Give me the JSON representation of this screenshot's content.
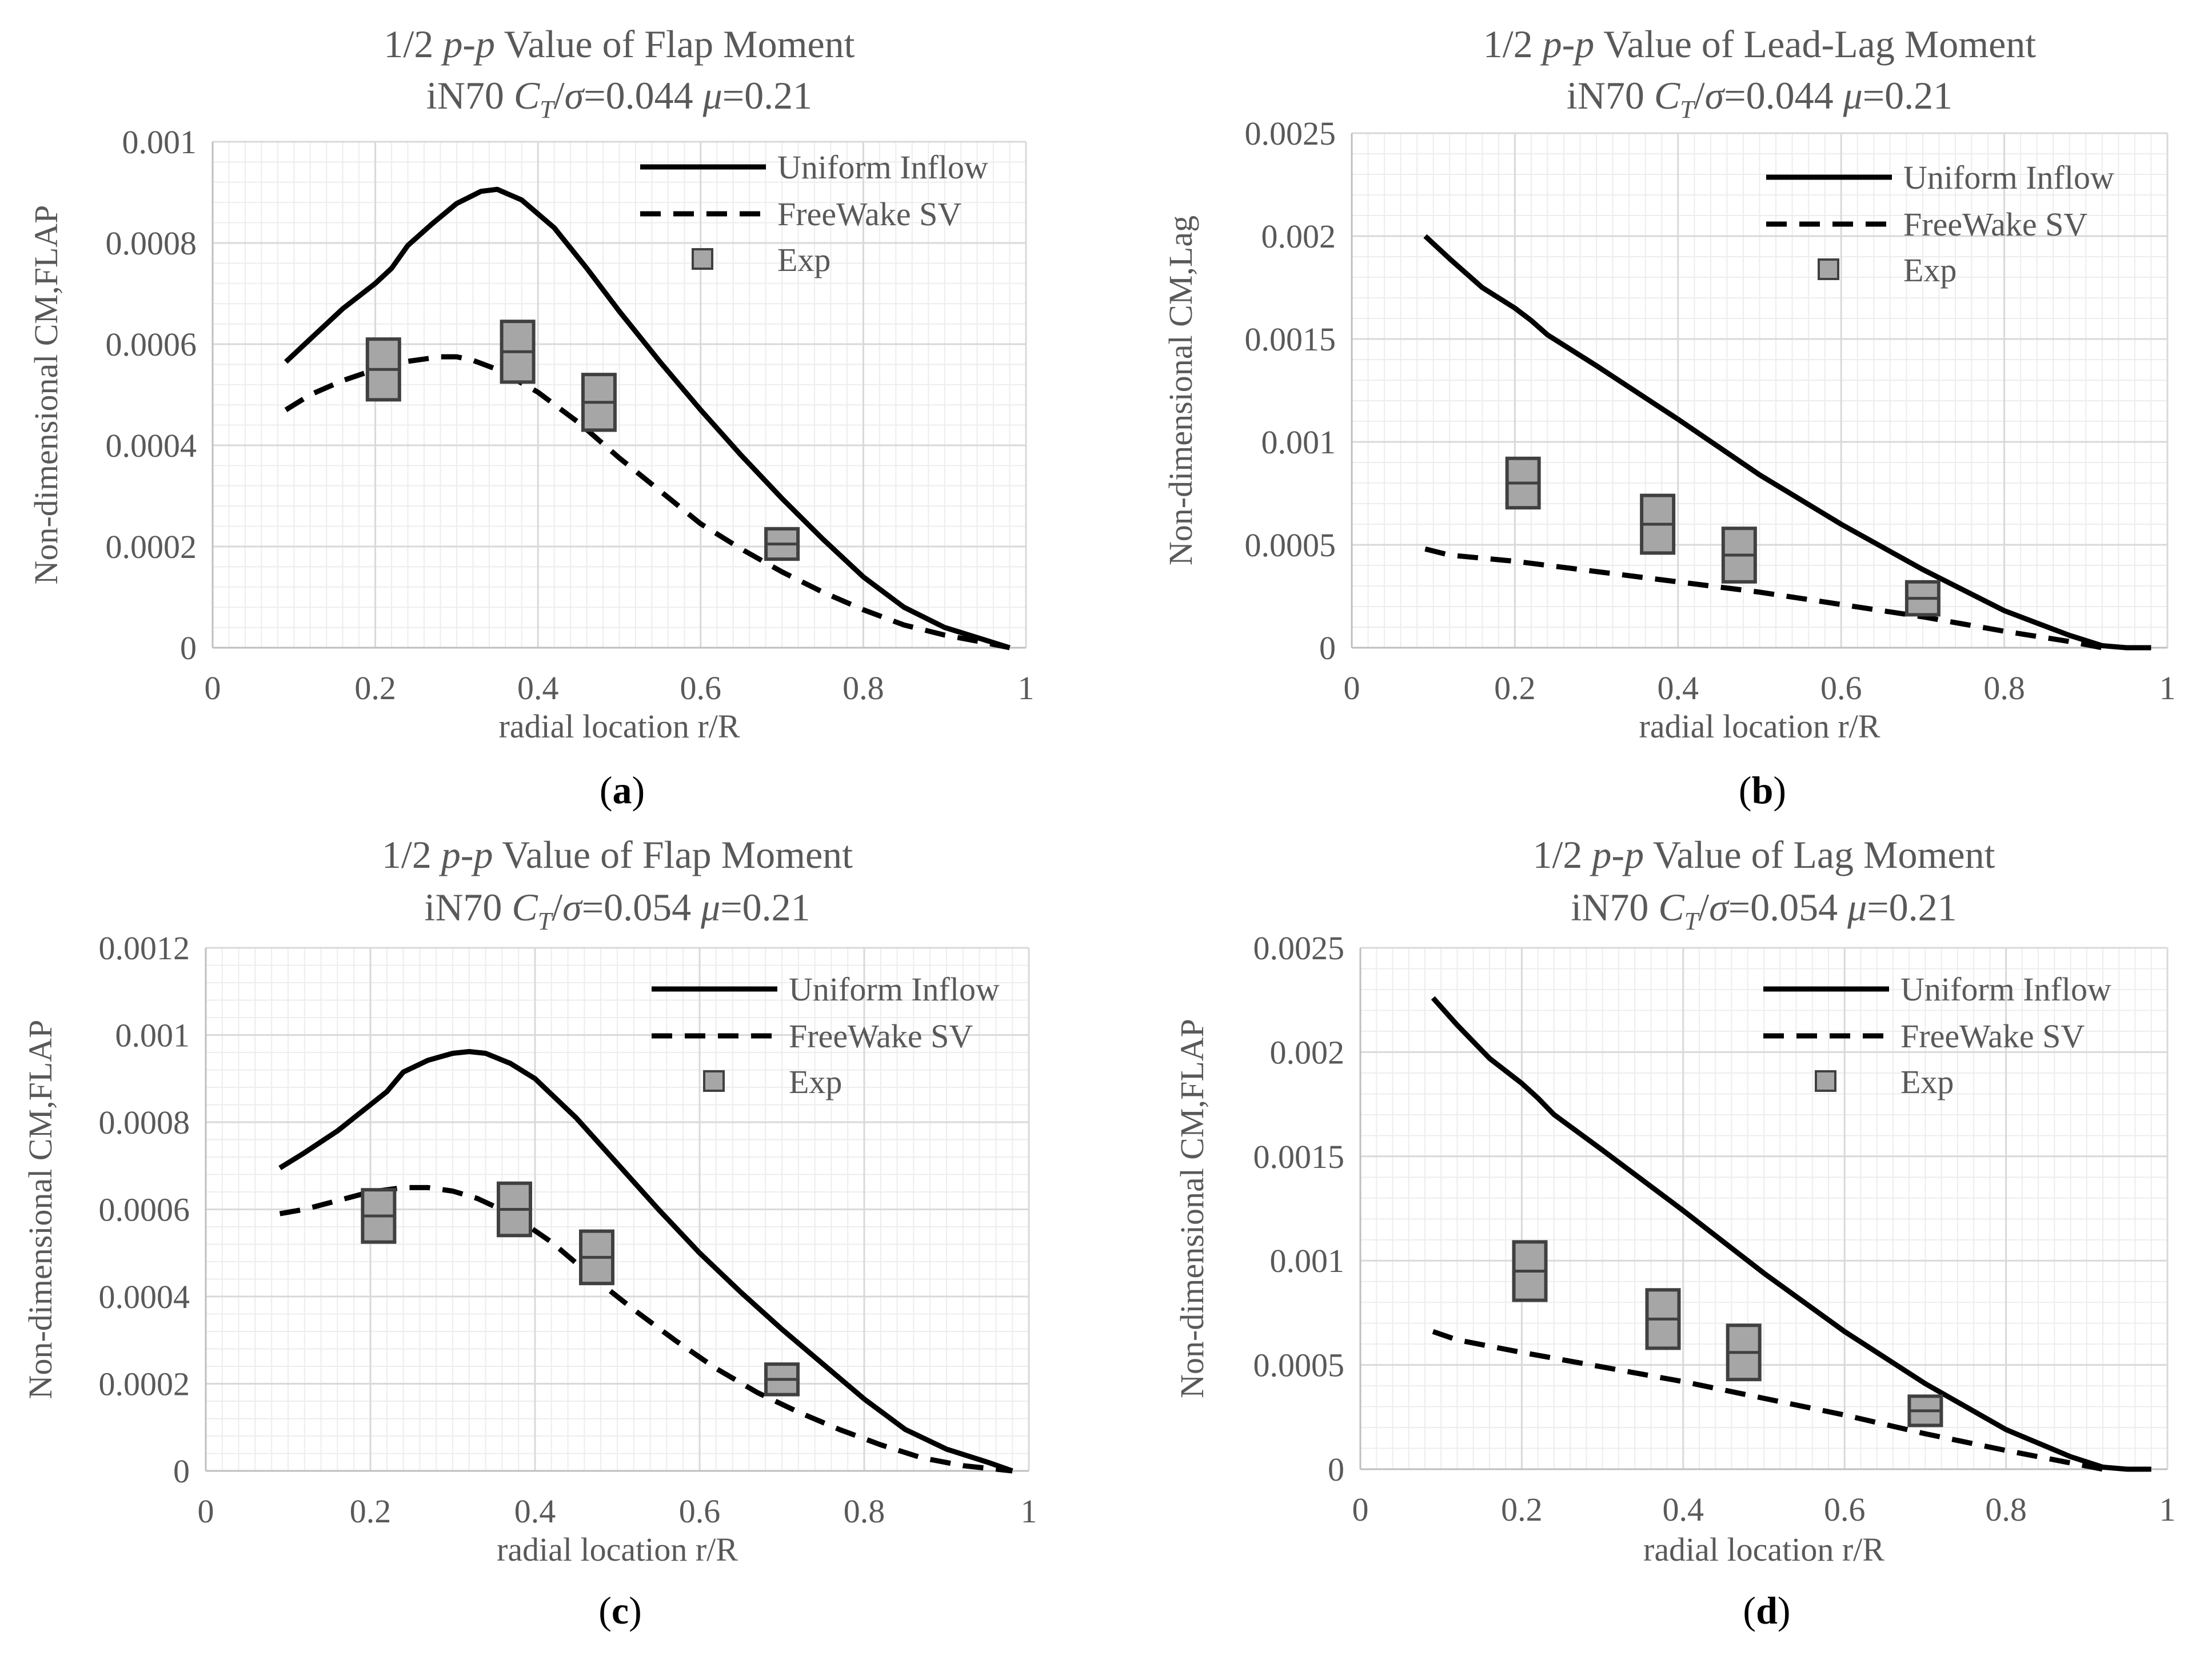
{
  "series_meta": {
    "uniform_name": "Uniform Inflow",
    "freewake_name": "FreeWake SV",
    "exp_name": "Exp",
    "line_color": "#000000",
    "exp_fill": "#a6a6a6",
    "exp_stroke": "#404040",
    "grid_major": "#d9d9d9",
    "grid_minor": "#ededed"
  },
  "chart_data": [
    {
      "type": "line",
      "title_line1": "1/2 p-p Value of Flap Moment",
      "title_line1_parts": [
        "1/2 ",
        "p-p",
        " Value of Flap Moment"
      ],
      "title_line2_parts": [
        "iN70 ",
        "C",
        "T",
        "/",
        "σ",
        "=0.044 ",
        "μ",
        "=0.21"
      ],
      "caption_letter": "a",
      "xlabel": "radial location r/R",
      "ylabel": "Non-dimensional  CM,FLAP",
      "xlim": [
        0,
        1
      ],
      "ylim": [
        0,
        0.001
      ],
      "xticks": [
        0,
        0.2,
        0.4,
        0.6,
        0.8,
        1
      ],
      "xtick_labels": [
        "0",
        "0.2",
        "0.4",
        "0.6",
        "0.8",
        "1"
      ],
      "yticks": [
        0,
        0.0002,
        0.0004,
        0.0006,
        0.0008,
        0.001
      ],
      "ytick_labels": [
        "0",
        "0.0002",
        "0.0004",
        "0.0006",
        "0.0008",
        "0.001"
      ],
      "series": [
        {
          "name": "Uniform Inflow",
          "style": "solid",
          "x": [
            0.09,
            0.12,
            0.16,
            0.2,
            0.22,
            0.24,
            0.27,
            0.3,
            0.33,
            0.35,
            0.38,
            0.42,
            0.46,
            0.5,
            0.55,
            0.6,
            0.65,
            0.7,
            0.75,
            0.8,
            0.85,
            0.9,
            0.95,
            0.98
          ],
          "y": [
            0.000565,
            0.00061,
            0.00067,
            0.00072,
            0.00075,
            0.000795,
            0.000838,
            0.000878,
            0.000902,
            0.000906,
            0.000885,
            0.00083,
            0.00075,
            0.000665,
            0.000565,
            0.00047,
            0.00038,
            0.000295,
            0.000215,
            0.00014,
            8e-05,
            4e-05,
            1.5e-05,
            0.0
          ]
        },
        {
          "name": "FreeWake SV",
          "style": "dashed",
          "x": [
            0.09,
            0.12,
            0.16,
            0.2,
            0.24,
            0.28,
            0.3,
            0.32,
            0.35,
            0.4,
            0.45,
            0.5,
            0.55,
            0.6,
            0.65,
            0.7,
            0.75,
            0.8,
            0.85,
            0.9,
            0.95,
            0.98
          ],
          "y": [
            0.00047,
            0.0005,
            0.000528,
            0.00055,
            0.000566,
            0.000575,
            0.000575,
            0.000568,
            0.00055,
            0.000505,
            0.000445,
            0.000375,
            0.00031,
            0.000245,
            0.000195,
            0.00015,
            0.00011,
            7.5e-05,
            4.5e-05,
            2.5e-05,
            1e-05,
            0.0
          ]
        },
        {
          "name": "Exp",
          "style": "box",
          "x": [
            0.21,
            0.375,
            0.475,
            0.7
          ],
          "y": [
            0.00055,
            0.000585,
            0.000485,
            0.000205
          ],
          "half_range": [
            6e-05,
            6e-05,
            5.5e-05,
            3e-05
          ]
        }
      ]
    },
    {
      "type": "line",
      "title_line1": "1/2 p-p Value of Lead-Lag Moment",
      "title_line1_parts": [
        "1/2 ",
        "p-p",
        " Value of Lead-Lag Moment"
      ],
      "title_line2_parts": [
        "iN70 ",
        "C",
        "T",
        "/",
        "σ",
        "=0.044 ",
        "μ",
        "=0.21"
      ],
      "caption_letter": "b",
      "xlabel": "radial location r/R",
      "ylabel": "Non-dimensional  CM,Lag",
      "xlim": [
        0,
        1
      ],
      "ylim": [
        0,
        0.0025
      ],
      "xticks": [
        0,
        0.2,
        0.4,
        0.6,
        0.8,
        1
      ],
      "xtick_labels": [
        "0",
        "0.2",
        "0.4",
        "0.6",
        "0.8",
        "1"
      ],
      "yticks": [
        0,
        0.0005,
        0.001,
        0.0015,
        0.002,
        0.0025
      ],
      "ytick_labels": [
        "0",
        "0.0005",
        "0.001",
        "0.0015",
        "0.002",
        "0.0025"
      ],
      "series": [
        {
          "name": "Uniform Inflow",
          "style": "solid",
          "x": [
            0.09,
            0.12,
            0.16,
            0.2,
            0.22,
            0.24,
            0.3,
            0.4,
            0.5,
            0.6,
            0.7,
            0.8,
            0.88,
            0.92,
            0.95,
            0.98
          ],
          "y": [
            0.002,
            0.00189,
            0.00175,
            0.00165,
            0.00159,
            0.00152,
            0.00137,
            0.00111,
            0.00084,
            0.0006,
            0.00038,
            0.00018,
            6e-05,
            1e-05,
            0.0,
            0.0
          ]
        },
        {
          "name": "FreeWake SV",
          "style": "dashed",
          "x": [
            0.09,
            0.12,
            0.2,
            0.3,
            0.4,
            0.5,
            0.6,
            0.7,
            0.8,
            0.88,
            0.92
          ],
          "y": [
            0.00048,
            0.00045,
            0.00042,
            0.00037,
            0.00032,
            0.00027,
            0.00021,
            0.00015,
            8e-05,
            3e-05,
            0.0
          ]
        },
        {
          "name": "Exp",
          "style": "box",
          "x": [
            0.21,
            0.375,
            0.475,
            0.7
          ],
          "y": [
            0.0008,
            0.0006,
            0.00045,
            0.00024
          ],
          "half_range": [
            0.00012,
            0.00014,
            0.00013,
            8e-05
          ]
        }
      ]
    },
    {
      "type": "line",
      "title_line1": "1/2 p-p Value of Flap Moment",
      "title_line1_parts": [
        "1/2 ",
        "p-p",
        " Value of Flap Moment"
      ],
      "title_line2_parts": [
        "iN70 ",
        "C",
        "T",
        "/",
        "σ",
        "=0.054 ",
        "μ",
        "=0.21"
      ],
      "caption_letter": "c",
      "xlabel": "radial location r/R",
      "ylabel": "Non-dimensional  CM,FLAP",
      "xlim": [
        0,
        1
      ],
      "ylim": [
        0,
        0.0012
      ],
      "xticks": [
        0,
        0.2,
        0.4,
        0.6,
        0.8,
        1
      ],
      "xtick_labels": [
        "0",
        "0.2",
        "0.4",
        "0.6",
        "0.8",
        "1"
      ],
      "yticks": [
        0,
        0.0002,
        0.0004,
        0.0006,
        0.0008,
        0.001,
        0.0012
      ],
      "ytick_labels": [
        "0",
        "0.0002",
        "0.0004",
        "0.0006",
        "0.0008",
        "0.001",
        "0.0012"
      ],
      "series": [
        {
          "name": "Uniform Inflow",
          "style": "solid",
          "x": [
            0.09,
            0.12,
            0.16,
            0.2,
            0.22,
            0.24,
            0.27,
            0.3,
            0.32,
            0.34,
            0.37,
            0.4,
            0.45,
            0.5,
            0.55,
            0.6,
            0.65,
            0.7,
            0.75,
            0.8,
            0.85,
            0.9,
            0.95,
            0.98
          ],
          "y": [
            0.000695,
            0.00073,
            0.00078,
            0.00084,
            0.00087,
            0.000915,
            0.000942,
            0.000958,
            0.000962,
            0.000958,
            0.000935,
            0.0009,
            0.00081,
            0.000705,
            0.0006,
            0.0005,
            0.00041,
            0.000325,
            0.000245,
            0.000165,
            9.5e-05,
            5e-05,
            2e-05,
            0.0
          ]
        },
        {
          "name": "FreeWake SV",
          "style": "dashed",
          "x": [
            0.09,
            0.12,
            0.16,
            0.2,
            0.24,
            0.27,
            0.3,
            0.33,
            0.37,
            0.42,
            0.47,
            0.52,
            0.57,
            0.62,
            0.67,
            0.72,
            0.77,
            0.82,
            0.87,
            0.92,
            0.98
          ],
          "y": [
            0.00059,
            0.0006,
            0.00062,
            0.00064,
            0.00065,
            0.00065,
            0.000642,
            0.000625,
            0.00059,
            0.000525,
            0.000445,
            0.00037,
            0.0003,
            0.000235,
            0.00018,
            0.000135,
            9.5e-05,
            6e-05,
            3e-05,
            1.2e-05,
            0.0
          ]
        },
        {
          "name": "Exp",
          "style": "box",
          "x": [
            0.21,
            0.375,
            0.475,
            0.7
          ],
          "y": [
            0.000585,
            0.0006,
            0.00049,
            0.00021
          ],
          "half_range": [
            6e-05,
            6e-05,
            6e-05,
            3.5e-05
          ]
        }
      ]
    },
    {
      "type": "line",
      "title_line1": "1/2 p-p Value of Lag Moment",
      "title_line1_parts": [
        "1/2 ",
        "p-p",
        " Value of Lag Moment"
      ],
      "title_line2_parts": [
        "iN70 ",
        "C",
        "T",
        "/",
        "σ",
        "=0.054 ",
        "μ",
        "=0.21"
      ],
      "caption_letter": "d",
      "xlabel": "radial location r/R",
      "ylabel": "Non-dimensional  CM,FLAP",
      "xlim": [
        0,
        1
      ],
      "ylim": [
        0,
        0.0025
      ],
      "xticks": [
        0,
        0.2,
        0.4,
        0.6,
        0.8,
        1
      ],
      "xtick_labels": [
        "0",
        "0.2",
        "0.4",
        "0.6",
        "0.8",
        "1"
      ],
      "yticks": [
        0,
        0.0005,
        0.001,
        0.0015,
        0.002,
        0.0025
      ],
      "ytick_labels": [
        "0",
        "0.0005",
        "0.001",
        "0.0015",
        "0.002",
        "0.0025"
      ],
      "series": [
        {
          "name": "Uniform Inflow",
          "style": "solid",
          "x": [
            0.09,
            0.12,
            0.16,
            0.2,
            0.22,
            0.24,
            0.3,
            0.4,
            0.5,
            0.6,
            0.7,
            0.8,
            0.88,
            0.92,
            0.95,
            0.98
          ],
          "y": [
            0.00226,
            0.00213,
            0.00197,
            0.00185,
            0.00178,
            0.0017,
            0.00153,
            0.00124,
            0.00094,
            0.00066,
            0.00041,
            0.00019,
            6e-05,
            1e-05,
            0.0,
            0.0
          ]
        },
        {
          "name": "FreeWake SV",
          "style": "dashed",
          "x": [
            0.09,
            0.12,
            0.2,
            0.3,
            0.4,
            0.5,
            0.6,
            0.7,
            0.8,
            0.88,
            0.92
          ],
          "y": [
            0.00066,
            0.00062,
            0.00056,
            0.00049,
            0.00042,
            0.00034,
            0.00026,
            0.00017,
            9e-05,
            3e-05,
            0.0
          ]
        },
        {
          "name": "Exp",
          "style": "box",
          "x": [
            0.21,
            0.375,
            0.475,
            0.7
          ],
          "y": [
            0.00095,
            0.00072,
            0.00056,
            0.00028
          ],
          "half_range": [
            0.00014,
            0.00014,
            0.00013,
            7e-05
          ]
        }
      ]
    }
  ]
}
